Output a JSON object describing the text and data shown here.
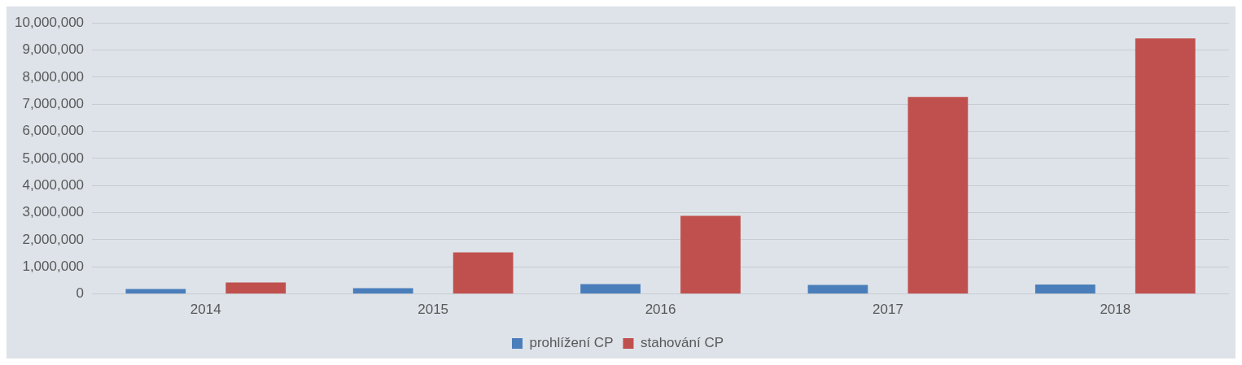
{
  "chart_data": {
    "type": "bar",
    "categories": [
      "2014",
      "2015",
      "2016",
      "2017",
      "2018"
    ],
    "series": [
      {
        "name": "prohlížení CP",
        "color": "#4a7ebb",
        "values": [
          180000,
          210000,
          360000,
          330000,
          350000
        ]
      },
      {
        "name": "stahování CP",
        "color": "#c0504d",
        "values": [
          420000,
          1530000,
          2880000,
          7270000,
          9430000
        ]
      }
    ],
    "ylim": [
      0,
      10000000
    ],
    "yticks": [
      {
        "value": 0,
        "label": "0"
      },
      {
        "value": 1000000,
        "label": "1,000,000"
      },
      {
        "value": 2000000,
        "label": "2,000,000"
      },
      {
        "value": 3000000,
        "label": "3,000,000"
      },
      {
        "value": 4000000,
        "label": "4,000,000"
      },
      {
        "value": 5000000,
        "label": "5,000,000"
      },
      {
        "value": 6000000,
        "label": "6,000,000"
      },
      {
        "value": 7000000,
        "label": "7,000,000"
      },
      {
        "value": 8000000,
        "label": "8,000,000"
      },
      {
        "value": 9000000,
        "label": "9,000,000"
      },
      {
        "value": 10000000,
        "label": "10,000,000"
      }
    ],
    "grid": "y",
    "legend": "bottom"
  }
}
